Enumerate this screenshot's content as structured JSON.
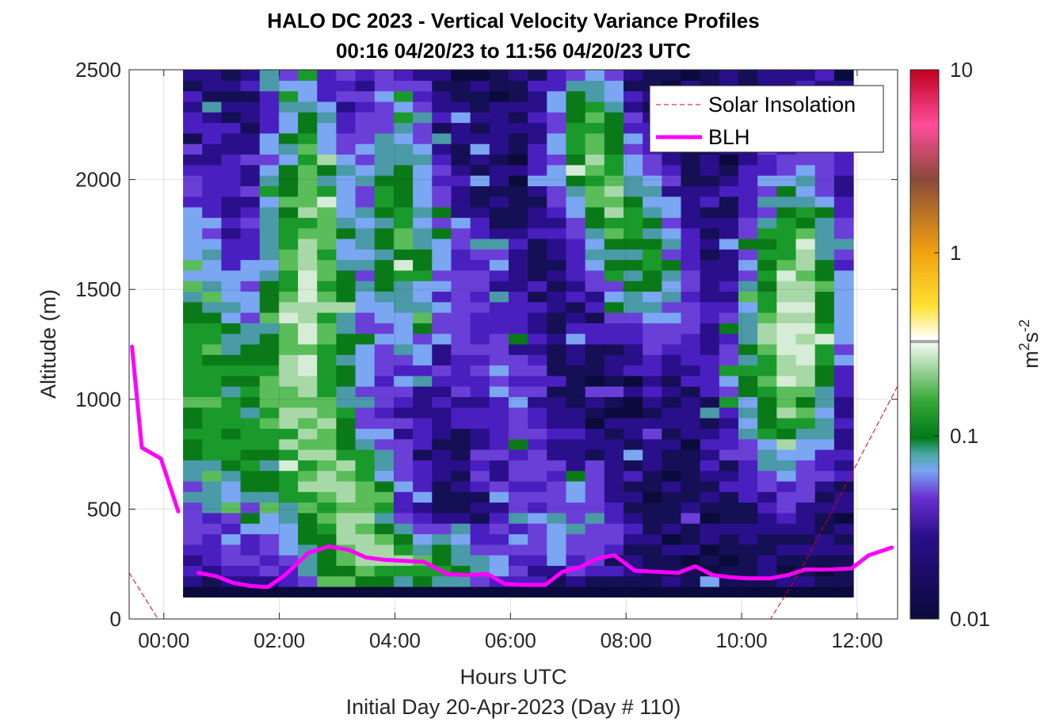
{
  "chart_data": {
    "type": "heatmap",
    "title": "HALO DC 2023 - Vertical Velocity Variance Profiles",
    "subtitle": "00:16 04/20/23 to 11:56 04/20/23  UTC",
    "xlabel": "Hours UTC",
    "xlabel2": "Initial Day 20-Apr-2023 (Day # 110)",
    "ylabel": "Altitude (m)",
    "x_ticks": [
      "00:00",
      "02:00",
      "04:00",
      "06:00",
      "08:00",
      "10:00",
      "12:00"
    ],
    "x_tick_hours": [
      0,
      2,
      4,
      6,
      8,
      10,
      12
    ],
    "xlim_hours": [
      -0.6,
      12.7
    ],
    "y_ticks": [
      "0",
      "500",
      "1000",
      "1500",
      "2000",
      "2500"
    ],
    "ylim": [
      0,
      2500
    ],
    "grid": true,
    "colorbar": {
      "label": "m2s-2",
      "scale": "log",
      "ticks": [
        "0.01",
        "0.1",
        "1",
        "10"
      ],
      "range": [
        0.01,
        10
      ]
    },
    "legend": {
      "placement": "top-right",
      "entries": [
        "Solar Insolation",
        "BLH"
      ]
    },
    "heatmap": {
      "hour_start": 0.333,
      "hour_end": 11.933,
      "altitude_start": 100,
      "altitude_end": 2500,
      "n_columns": 35,
      "n_rows": 50,
      "cell_count": 1750,
      "value_range": [
        0.01,
        0.3
      ]
    },
    "series": [
      {
        "name": "BLH",
        "color": "#ff00ff",
        "hours": [
          -0.55,
          -0.38,
          -0.05,
          0.25
        ],
        "altitude": [
          1240,
          780,
          730,
          490
        ]
      },
      {
        "name": "BLH",
        "color": "#ff00ff",
        "hours": [
          0.6,
          0.9,
          1.2,
          1.5,
          1.8,
          2.1,
          2.5,
          2.85,
          3.2,
          3.5,
          3.8,
          4.1,
          4.5,
          4.9,
          5.2,
          5.6,
          5.9,
          6.2,
          6.6,
          6.9,
          7.2,
          7.5,
          7.8,
          8.15,
          8.5,
          8.9,
          9.2,
          9.5,
          9.8,
          10.1,
          10.5,
          10.8,
          11.1,
          11.5,
          11.9,
          12.2,
          12.6
        ],
        "altitude": [
          210,
          195,
          165,
          150,
          145,
          200,
          300,
          330,
          315,
          280,
          270,
          265,
          260,
          205,
          200,
          205,
          160,
          155,
          155,
          215,
          235,
          275,
          290,
          220,
          215,
          210,
          240,
          200,
          190,
          185,
          185,
          200,
          225,
          225,
          230,
          290,
          325
        ]
      },
      {
        "name": "Solar Insolation",
        "color": "#e00000",
        "hours": [
          -0.6,
          -0.1,
          0,
          10.5,
          11.0,
          12.7
        ],
        "altitude": [
          210,
          0,
          0,
          0,
          210,
          1060
        ]
      }
    ]
  }
}
